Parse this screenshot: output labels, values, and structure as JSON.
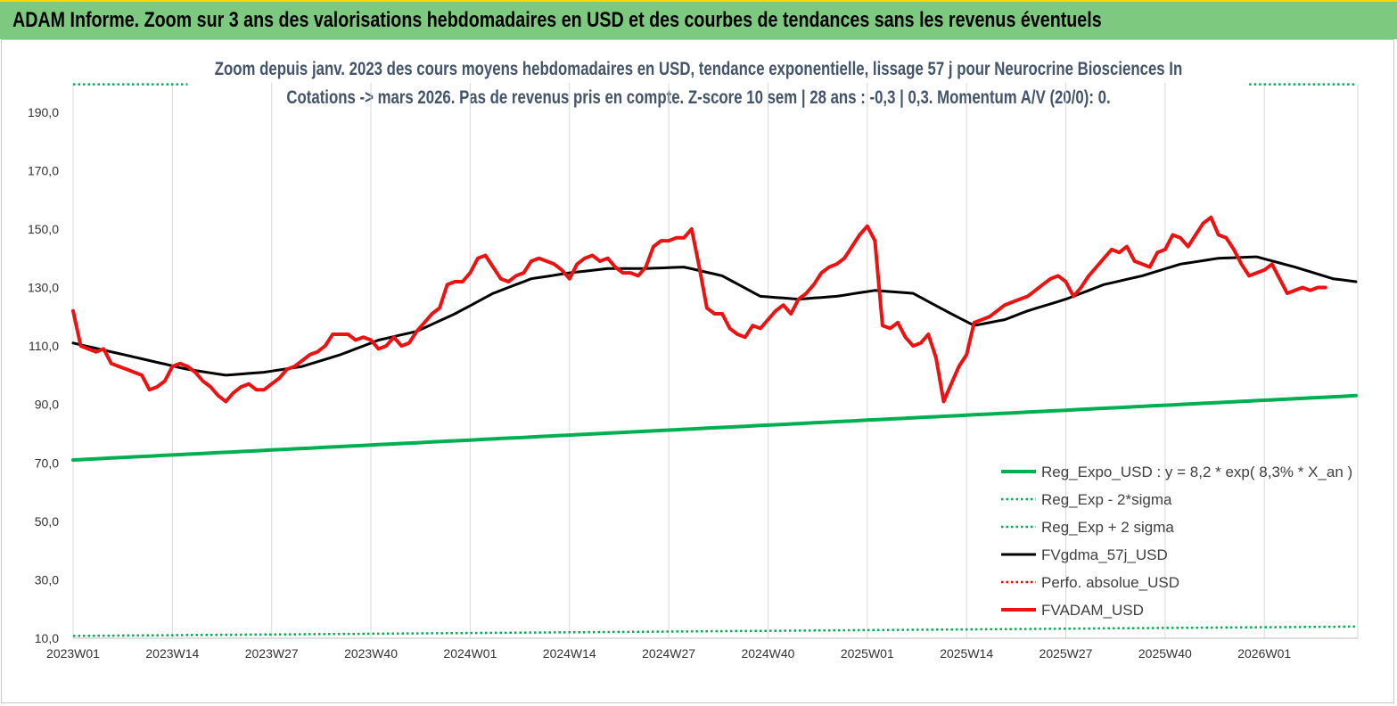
{
  "banner": {
    "title": "ADAM Informe. Zoom sur 3 ans des valorisations hebdomadaires en USD et des courbes de tendances sans les revenus éventuels"
  },
  "colors": {
    "banner_bg": "#7dc97f",
    "reg_expo": "#00b050",
    "sigma": "#00b050",
    "fvgdma": "#000000",
    "perfo": "#ff0000",
    "fvadam": "#ee1111"
  },
  "chart_data": {
    "type": "line",
    "title": "Zoom depuis janv. 2023 des cours moyens hebdomadaires en USD, tendance exponentielle, lissage 57 j pour Neurocrine Biosciences In",
    "subtitle": "Cotations -> mars 2026. Pas de revenus pris en compte. Z-score 10 sem | 28 ans : -0,3 | 0,3. Momentum A/V (20/0): 0.",
    "xlabel": "",
    "ylabel": "",
    "ylim": [
      10,
      200
    ],
    "y_ticks": [
      "190,0",
      "170,0",
      "150,0",
      "130,0",
      "110,0",
      "90,0",
      "70,0",
      "50,0",
      "30,0",
      "10,0"
    ],
    "y_tick_values": [
      190,
      170,
      150,
      130,
      110,
      90,
      70,
      50,
      30,
      10
    ],
    "x_ticks": [
      "2023W01",
      "2023W14",
      "2023W27",
      "2023W40",
      "2024W01",
      "2024W14",
      "2024W27",
      "2024W40",
      "2025W01",
      "2025W14",
      "2025W27",
      "2025W40",
      "2026W01"
    ],
    "x_tick_index": [
      0,
      13,
      26,
      39,
      52,
      65,
      78,
      91,
      104,
      117,
      130,
      143,
      156
    ],
    "n_points": 169,
    "grid": "vertical",
    "legend_position": "bottom-right",
    "series": [
      {
        "name": "Reg_Expo_USD : y = 8,2 * exp( 8,3% * X_an )",
        "style": "solid-thick",
        "knots": [
          [
            0,
            71
          ],
          [
            168,
            93
          ]
        ]
      },
      {
        "name": "Reg_Exp - 2*sigma",
        "style": "dotted",
        "knots": [
          [
            0,
            10.8
          ],
          [
            168,
            14
          ]
        ]
      },
      {
        "name": "Reg_Exp + 2 sigma",
        "style": "dotted",
        "knots": [
          [
            0,
            199.5
          ],
          [
            15,
            199.5
          ],
          [
            154,
            199.5
          ],
          [
            168,
            199.5
          ]
        ],
        "visible_ranges": [
          [
            0,
            15
          ],
          [
            154,
            168
          ]
        ]
      },
      {
        "name": "FVgdma_57j_USD",
        "style": "solid",
        "knots": [
          [
            0,
            111
          ],
          [
            5,
            108
          ],
          [
            10,
            105
          ],
          [
            15,
            102
          ],
          [
            20,
            100
          ],
          [
            25,
            101
          ],
          [
            30,
            103
          ],
          [
            35,
            107
          ],
          [
            40,
            112
          ],
          [
            45,
            115
          ],
          [
            50,
            121
          ],
          [
            55,
            128
          ],
          [
            60,
            133
          ],
          [
            65,
            135
          ],
          [
            70,
            136.5
          ],
          [
            75,
            136.5
          ],
          [
            80,
            137
          ],
          [
            85,
            134
          ],
          [
            90,
            127
          ],
          [
            95,
            126
          ],
          [
            100,
            127
          ],
          [
            105,
            129
          ],
          [
            110,
            128
          ],
          [
            115,
            121
          ],
          [
            118,
            117
          ],
          [
            122,
            119
          ],
          [
            125,
            122
          ],
          [
            130,
            126
          ],
          [
            135,
            131
          ],
          [
            140,
            134
          ],
          [
            145,
            138
          ],
          [
            150,
            140
          ],
          [
            155,
            140.5
          ],
          [
            160,
            137
          ],
          [
            165,
            133
          ],
          [
            168,
            132
          ]
        ]
      },
      {
        "name": "Perfo. absolue_USD",
        "style": "dotted",
        "knots": []
      },
      {
        "name": "FVADAM_USD",
        "style": "solid-thick",
        "knots": [
          [
            0,
            122
          ],
          [
            1,
            110
          ],
          [
            2,
            109
          ],
          [
            3,
            108
          ],
          [
            4,
            109
          ],
          [
            5,
            104
          ],
          [
            6,
            103
          ],
          [
            7,
            102
          ],
          [
            8,
            101
          ],
          [
            9,
            100
          ],
          [
            10,
            95
          ],
          [
            11,
            96
          ],
          [
            12,
            98
          ],
          [
            13,
            103
          ],
          [
            14,
            104
          ],
          [
            15,
            103
          ],
          [
            16,
            101
          ],
          [
            17,
            98
          ],
          [
            18,
            96
          ],
          [
            19,
            93
          ],
          [
            20,
            91
          ],
          [
            21,
            94
          ],
          [
            22,
            96
          ],
          [
            23,
            97
          ],
          [
            24,
            95
          ],
          [
            25,
            95
          ],
          [
            26,
            97
          ],
          [
            27,
            99
          ],
          [
            28,
            102
          ],
          [
            29,
            103
          ],
          [
            30,
            105
          ],
          [
            31,
            107
          ],
          [
            32,
            108
          ],
          [
            33,
            110
          ],
          [
            34,
            114
          ],
          [
            35,
            114
          ],
          [
            36,
            114
          ],
          [
            37,
            112
          ],
          [
            38,
            113
          ],
          [
            39,
            112
          ],
          [
            40,
            109
          ],
          [
            41,
            110
          ],
          [
            42,
            113
          ],
          [
            43,
            110
          ],
          [
            44,
            111
          ],
          [
            45,
            115
          ],
          [
            46,
            118
          ],
          [
            47,
            121
          ],
          [
            48,
            123
          ],
          [
            49,
            131
          ],
          [
            50,
            132
          ],
          [
            51,
            132
          ],
          [
            52,
            135
          ],
          [
            53,
            140
          ],
          [
            54,
            141
          ],
          [
            55,
            137
          ],
          [
            56,
            133
          ],
          [
            57,
            132
          ],
          [
            58,
            134
          ],
          [
            59,
            135
          ],
          [
            60,
            139
          ],
          [
            61,
            140
          ],
          [
            62,
            139
          ],
          [
            63,
            138
          ],
          [
            64,
            136
          ],
          [
            65,
            133
          ],
          [
            66,
            138
          ],
          [
            67,
            140
          ],
          [
            68,
            141
          ],
          [
            69,
            139
          ],
          [
            70,
            140
          ],
          [
            71,
            137
          ],
          [
            72,
            135
          ],
          [
            73,
            135
          ],
          [
            74,
            134
          ],
          [
            75,
            137
          ],
          [
            76,
            144
          ],
          [
            77,
            146
          ],
          [
            78,
            146
          ],
          [
            79,
            147
          ],
          [
            80,
            147
          ],
          [
            81,
            150
          ],
          [
            82,
            137
          ],
          [
            83,
            123
          ],
          [
            84,
            121
          ],
          [
            85,
            121
          ],
          [
            86,
            116
          ],
          [
            87,
            114
          ],
          [
            88,
            113
          ],
          [
            89,
            117
          ],
          [
            90,
            116
          ],
          [
            91,
            119
          ],
          [
            92,
            122
          ],
          [
            93,
            124
          ],
          [
            94,
            121
          ],
          [
            95,
            126
          ],
          [
            96,
            128
          ],
          [
            97,
            131
          ],
          [
            98,
            135
          ],
          [
            99,
            137
          ],
          [
            100,
            138
          ],
          [
            101,
            140
          ],
          [
            102,
            144
          ],
          [
            103,
            148
          ],
          [
            104,
            151
          ],
          [
            105,
            146
          ],
          [
            106,
            117
          ],
          [
            107,
            116
          ],
          [
            108,
            118
          ],
          [
            109,
            113
          ],
          [
            110,
            110
          ],
          [
            111,
            111
          ],
          [
            112,
            114
          ],
          [
            113,
            106
          ],
          [
            114,
            91
          ],
          [
            115,
            97
          ],
          [
            116,
            103
          ],
          [
            117,
            107
          ],
          [
            118,
            118
          ],
          [
            119,
            119
          ],
          [
            120,
            120
          ],
          [
            121,
            122
          ],
          [
            122,
            124
          ],
          [
            123,
            125
          ],
          [
            124,
            126
          ],
          [
            125,
            127
          ],
          [
            126,
            129
          ],
          [
            127,
            131
          ],
          [
            128,
            133
          ],
          [
            129,
            134
          ],
          [
            130,
            132
          ],
          [
            131,
            127
          ],
          [
            132,
            130
          ],
          [
            133,
            134
          ],
          [
            134,
            137
          ],
          [
            135,
            140
          ],
          [
            136,
            143
          ],
          [
            137,
            142
          ],
          [
            138,
            144
          ],
          [
            139,
            139
          ],
          [
            140,
            138
          ],
          [
            141,
            137
          ],
          [
            142,
            142
          ],
          [
            143,
            143
          ],
          [
            144,
            148
          ],
          [
            145,
            147
          ],
          [
            146,
            144
          ],
          [
            147,
            148
          ],
          [
            148,
            152
          ],
          [
            149,
            154
          ],
          [
            150,
            148
          ],
          [
            151,
            147
          ],
          [
            152,
            143
          ],
          [
            153,
            138
          ],
          [
            154,
            134
          ],
          [
            155,
            135
          ],
          [
            156,
            136
          ],
          [
            157,
            138
          ],
          [
            158,
            133
          ],
          [
            159,
            128
          ],
          [
            160,
            129
          ],
          [
            161,
            130
          ],
          [
            162,
            129
          ],
          [
            163,
            130
          ],
          [
            164,
            130
          ]
        ]
      }
    ]
  }
}
